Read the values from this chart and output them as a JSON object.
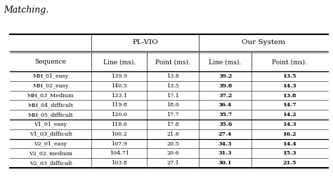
{
  "title": "Matching.",
  "sequences": [
    "MH_01_easy",
    "MH_02_easy",
    "MH_03_Medium",
    "MH_04_difficult",
    "MH_05_difficult",
    "V1_01_easy",
    "V1_03_difficult",
    "V2_01_easy",
    "V2_02_medium",
    "V2_03_difficult"
  ],
  "pl_vio_line": [
    "139.9",
    "140.5",
    "133.1",
    "119.8",
    "120.0",
    "118.6",
    "100.2",
    "107.9",
    "104.71",
    "103.8"
  ],
  "pl_vio_point": [
    "13.8",
    "13.5",
    "17.1",
    "18.0",
    "17.7",
    "17.8",
    "21.6",
    "20.5",
    "20.6",
    "27.1"
  ],
  "our_line": [
    "39.2",
    "39.8",
    "37.2",
    "36.4",
    "35.7",
    "35.6",
    "27.4",
    "34.3",
    "31.3",
    "30.1"
  ],
  "our_point": [
    "13.5",
    "14.3",
    "13.8",
    "14.7",
    "14.2",
    "14.3",
    "16.2",
    "14.4",
    "15.3",
    "21.5"
  ],
  "col_header1": "PL-VIO",
  "col_header2": "Our System",
  "sub_col_line": "Line (ms).",
  "sub_col_point": "Point (ms).",
  "seq_label": "Sequence",
  "table_bg": "#ffffff",
  "thick_border_lw": 1.5,
  "medium_border_lw": 1.0,
  "thin_border_lw": 0.5,
  "group_sep_lw": 0.9,
  "data_sep_lw": 0.4
}
